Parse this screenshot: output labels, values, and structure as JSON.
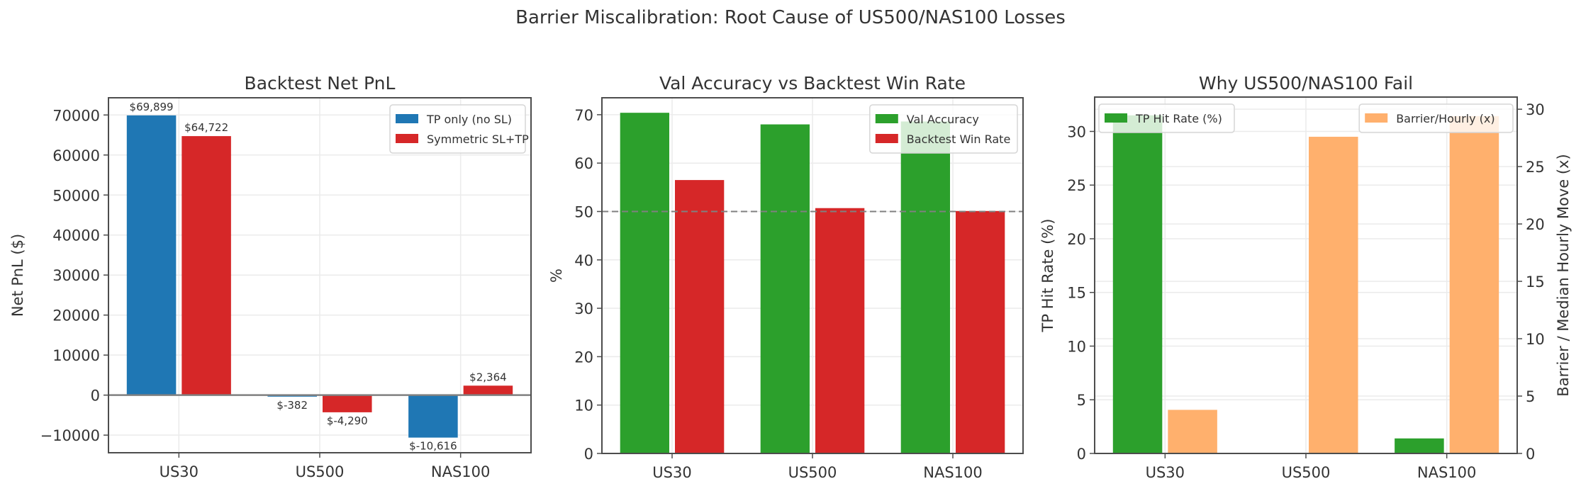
{
  "figure": {
    "suptitle": "Barrier Miscalibration: Root Cause of US500/NAS100 Losses"
  },
  "chart_data": [
    {
      "type": "bar",
      "title": "Backtest Net PnL",
      "xlabel": "",
      "ylabel": "Net PnL ($)",
      "categories": [
        "US30",
        "US500",
        "NAS100"
      ],
      "series": [
        {
          "name": "TP only (no SL)",
          "color": "#1f77b4",
          "values": [
            69899,
            -382,
            -10616
          ],
          "labels": [
            "$69,899",
            "$-382",
            "$-10,616"
          ]
        },
        {
          "name": "Symmetric SL+TP",
          "color": "#d62728",
          "values": [
            64722,
            -4290,
            2364
          ],
          "labels": [
            "$64,722",
            "$-4,290",
            "$2,364"
          ]
        }
      ],
      "ylim": [
        -14400,
        74300
      ],
      "yticks": [
        -10000,
        0,
        10000,
        20000,
        30000,
        40000,
        50000,
        60000,
        70000
      ],
      "ytick_labels": [
        "−10000",
        "0",
        "10000",
        "20000",
        "30000",
        "40000",
        "50000",
        "60000",
        "70000"
      ],
      "zero_line": true,
      "grid": true,
      "legend_position": "upper right"
    },
    {
      "type": "bar",
      "title": "Val Accuracy vs Backtest Win Rate",
      "xlabel": "",
      "ylabel": "%",
      "categories": [
        "US30",
        "US500",
        "NAS100"
      ],
      "series": [
        {
          "name": "Val Accuracy",
          "color": "#2ca02c",
          "values": [
            70.4,
            68.0,
            68.6
          ]
        },
        {
          "name": "Backtest Win Rate",
          "color": "#d62728",
          "values": [
            56.5,
            50.7,
            50.1
          ]
        }
      ],
      "ylim": [
        0,
        73.5
      ],
      "yticks": [
        0,
        10,
        20,
        30,
        40,
        50,
        60,
        70
      ],
      "ytick_labels": [
        "0",
        "10",
        "20",
        "30",
        "40",
        "50",
        "60",
        "70"
      ],
      "reference_line": {
        "y": 50,
        "style": "dashed",
        "color": "#808080"
      },
      "grid": true,
      "legend_position": "upper right"
    },
    {
      "type": "bar",
      "title": "Why US500/NAS100 Fail",
      "xlabel": "",
      "ylabel": "TP Hit Rate (%)",
      "ylabel_right": "Barrier / Median Hourly Move (x)",
      "categories": [
        "US30",
        "US500",
        "NAS100"
      ],
      "series": [
        {
          "name": "TP Hit Rate (%)",
          "axis": "left",
          "color": "#2ca02c",
          "values": [
            31.5,
            0.0,
            1.4
          ]
        },
        {
          "name": "Barrier/Hourly (x)",
          "axis": "right",
          "color": "#ffb06d",
          "values": [
            3.8,
            27.6,
            29.4
          ]
        }
      ],
      "ylim": [
        0,
        33.2
      ],
      "yticks": [
        0,
        5,
        10,
        15,
        20,
        25,
        30
      ],
      "ytick_labels": [
        "0",
        "5",
        "10",
        "15",
        "20",
        "25",
        "30"
      ],
      "ylim_right": [
        0,
        31.06
      ],
      "yticks_right": [
        0,
        5,
        10,
        15,
        20,
        25,
        30
      ],
      "ytick_labels_right": [
        "0",
        "5",
        "10",
        "15",
        "20",
        "25",
        "30"
      ],
      "grid": true,
      "legend_position": "upper left (left axis), upper right (right axis)"
    }
  ]
}
